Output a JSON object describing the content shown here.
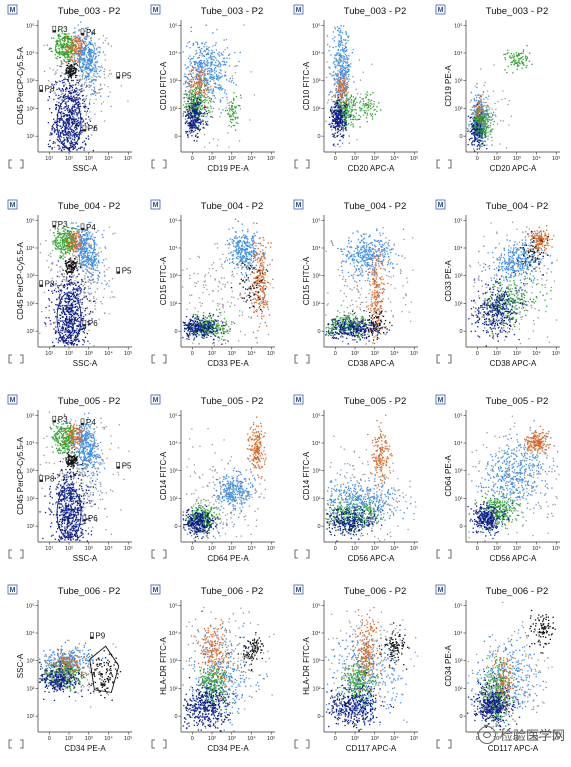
{
  "chart_data": [
    {
      "type": "scatter",
      "title": "Tube_003 - P2",
      "xlabel": "SSC-A",
      "ylabel": "CD45 PerCP-Cy5.5-A",
      "gates": [
        "P3",
        "P4",
        "P5",
        "P6",
        "P8"
      ],
      "xticks": [
        "10¹",
        "10²",
        "10³",
        "10⁴",
        "10⁵"
      ],
      "yticks": [
        "10¹",
        "10²",
        "10³",
        "10⁴",
        "10⁵"
      ]
    },
    {
      "type": "scatter",
      "title": "Tube_003 - P2",
      "xlabel": "CD19 PE-A",
      "ylabel": "CD10 FITC-A",
      "gates": [],
      "xticks": [
        "0",
        "10²",
        "10³",
        "10⁴",
        "10⁵"
      ],
      "yticks": [
        "0",
        "10²",
        "10³",
        "10⁴",
        "10⁵"
      ]
    },
    {
      "type": "scatter",
      "title": "Tube_003 - P2",
      "xlabel": "CD20 APC-A",
      "ylabel": "CD10 FITC-A",
      "gates": [],
      "xticks": [
        "0",
        "10²",
        "10³",
        "10⁴",
        "10⁵"
      ],
      "yticks": [
        "0",
        "10²",
        "10³",
        "10⁴",
        "10⁵"
      ]
    },
    {
      "type": "scatter",
      "title": "Tube_003 - P2",
      "xlabel": "CD20 APC-A",
      "ylabel": "CD19 PE-A",
      "gates": [],
      "xticks": [
        "0",
        "10²",
        "10³",
        "10⁴",
        "10⁵"
      ],
      "yticks": [
        "0",
        "10²",
        "10³",
        "10⁴",
        "10⁵"
      ]
    },
    {
      "type": "scatter",
      "title": "Tube_004 - P2",
      "xlabel": "SSC-A",
      "ylabel": "CD45 PerCP-Cy5.5-A",
      "gates": [
        "P3",
        "P4",
        "P5",
        "P6",
        "P8"
      ],
      "xticks": [
        "10¹",
        "10²",
        "10³",
        "10⁴",
        "10⁵"
      ],
      "yticks": [
        "10¹",
        "10²",
        "10³",
        "10⁴",
        "10⁵"
      ]
    },
    {
      "type": "scatter",
      "title": "Tube_004 - P2",
      "xlabel": "CD33 PE-A",
      "ylabel": "CD15 FITC-A",
      "gates": [],
      "xticks": [
        "0",
        "10²",
        "10³",
        "10⁴",
        "10⁵"
      ],
      "yticks": [
        "0",
        "10²",
        "10³",
        "10⁴",
        "10⁵"
      ]
    },
    {
      "type": "scatter",
      "title": "Tube_004 - P2",
      "xlabel": "CD38 APC-A",
      "ylabel": "CD15 FITC-A",
      "gates": [],
      "xticks": [
        "0",
        "10²",
        "10³",
        "10⁴",
        "10⁵"
      ],
      "yticks": [
        "0",
        "10²",
        "10³",
        "10⁴",
        "10⁵"
      ]
    },
    {
      "type": "scatter",
      "title": "Tube_004 - P2",
      "xlabel": "CD38 APC-A",
      "ylabel": "CD33 PE-A",
      "gates": [],
      "xticks": [
        "0",
        "10²",
        "10³",
        "10⁴",
        "10⁵"
      ],
      "yticks": [
        "0",
        "10²",
        "10³",
        "10⁴",
        "10⁵"
      ]
    },
    {
      "type": "scatter",
      "title": "Tube_005 - P2",
      "xlabel": "SSC-A",
      "ylabel": "CD45 PerCP-Cy5.5-A",
      "gates": [
        "P3",
        "P4",
        "P5",
        "P6",
        "P8"
      ],
      "xticks": [
        "10¹",
        "10²",
        "10³",
        "10⁴",
        "10⁵"
      ],
      "yticks": [
        "10¹",
        "10²",
        "10³",
        "10⁴",
        "10⁵"
      ]
    },
    {
      "type": "scatter",
      "title": "Tube_005 - P2",
      "xlabel": "CD64 PE-A",
      "ylabel": "CD14 FITC-A",
      "gates": [],
      "xticks": [
        "0",
        "10²",
        "10³",
        "10⁴",
        "10⁵"
      ],
      "yticks": [
        "0",
        "10²",
        "10³",
        "10⁴",
        "10⁵"
      ]
    },
    {
      "type": "scatter",
      "title": "Tube_005 - P2",
      "xlabel": "CD56 APC-A",
      "ylabel": "CD14 FITC-A",
      "gates": [],
      "xticks": [
        "0",
        "10²",
        "10³",
        "10⁴",
        "10⁵"
      ],
      "yticks": [
        "0",
        "10²",
        "10³",
        "10⁴",
        "10⁵"
      ]
    },
    {
      "type": "scatter",
      "title": "Tube_005 - P2",
      "xlabel": "CD56 APC-A",
      "ylabel": "CD64 PE-A",
      "gates": [],
      "xticks": [
        "0",
        "10²",
        "10³",
        "10⁴",
        "10⁵"
      ],
      "yticks": [
        "0",
        "10²",
        "10³",
        "10⁴",
        "10⁵"
      ]
    },
    {
      "type": "scatter",
      "title": "Tube_006 - P2",
      "xlabel": "CD34 PE-A",
      "ylabel": "SSC-A",
      "gates": [
        "P9"
      ],
      "xticks": [
        "0",
        "10²",
        "10³",
        "10⁴",
        "10⁵"
      ],
      "yticks": [
        "10¹",
        "10²",
        "10³",
        "10⁴",
        "10⁵"
      ]
    },
    {
      "type": "scatter",
      "title": "Tube_006 - P2",
      "xlabel": "CD34 PE-A",
      "ylabel": "HLA-DR FITC-A",
      "gates": [],
      "xticks": [
        "0",
        "10²",
        "10³",
        "10⁴",
        "10⁵"
      ],
      "yticks": [
        "0",
        "10²",
        "10³",
        "10⁴",
        "10⁵"
      ]
    },
    {
      "type": "scatter",
      "title": "Tube_006 - P2",
      "xlabel": "CD117 APC-A",
      "ylabel": "HLA-DR FITC-A",
      "gates": [],
      "xticks": [
        "0",
        "10²",
        "10³",
        "10⁴",
        "10⁵"
      ],
      "yticks": [
        "0",
        "10²",
        "10³",
        "10⁴",
        "10⁵"
      ]
    },
    {
      "type": "scatter",
      "title": "Tube_006 - P2",
      "xlabel": "CD117 APC-A",
      "ylabel": "CD34 PE-A",
      "gates": [],
      "xticks": [
        "0",
        "10²",
        "10³",
        "10⁴",
        "10⁵"
      ],
      "yticks": [
        "0",
        "10²",
        "10³",
        "10⁴",
        "10⁵"
      ]
    }
  ],
  "m_badge": "M",
  "colors": {
    "blue": "#3c8ee8",
    "orange": "#d8692a",
    "green": "#2ea52e",
    "navy": "#0d1e8c",
    "grey": "#9a9a9a",
    "black": "#111111"
  },
  "watermark": "检验医学网"
}
